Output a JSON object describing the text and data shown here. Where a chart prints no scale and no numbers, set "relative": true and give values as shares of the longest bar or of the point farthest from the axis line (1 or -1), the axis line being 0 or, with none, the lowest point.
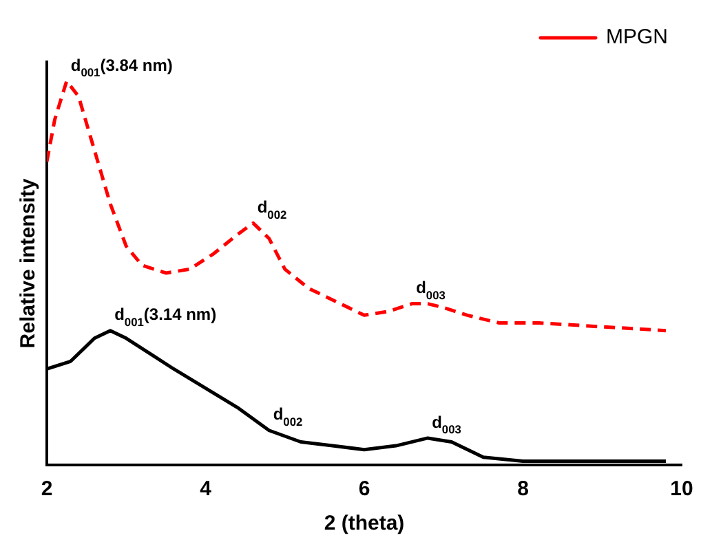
{
  "chart_data": {
    "type": "line",
    "xlabel": "2 (theta)",
    "ylabel": "Relative intensity",
    "relative": true,
    "xlim": [
      2,
      10
    ],
    "xticks": [
      2,
      4,
      6,
      8,
      10
    ],
    "grid": false,
    "legend": "top right",
    "marker": "none",
    "series": [
      {
        "color": "#000000",
        "line_style": "solid",
        "x": [
          2.0,
          2.3,
          2.6,
          2.8,
          3.0,
          3.3,
          3.6,
          4.0,
          4.4,
          4.8,
          5.2,
          5.6,
          6.0,
          6.4,
          6.8,
          7.1,
          7.5,
          8.0,
          9.0,
          9.8
        ],
        "values": [
          0.25,
          0.27,
          0.33,
          0.35,
          0.33,
          0.29,
          0.25,
          0.2,
          0.15,
          0.09,
          0.06,
          0.05,
          0.04,
          0.05,
          0.07,
          0.06,
          0.02,
          0.01,
          0.01,
          0.01
        ]
      },
      {
        "name": "MPGN",
        "color": "#ff0000",
        "line_style": "dashed",
        "x": [
          2.0,
          2.1,
          2.25,
          2.4,
          2.6,
          2.8,
          3.0,
          3.2,
          3.5,
          3.8,
          4.1,
          4.4,
          4.6,
          4.8,
          5.0,
          5.3,
          5.7,
          6.0,
          6.3,
          6.6,
          6.8,
          7.0,
          7.3,
          7.7,
          8.2,
          9.0,
          9.8
        ],
        "values": [
          0.79,
          0.9,
          1.0,
          0.96,
          0.82,
          0.68,
          0.57,
          0.52,
          0.5,
          0.51,
          0.55,
          0.6,
          0.63,
          0.59,
          0.51,
          0.46,
          0.42,
          0.39,
          0.4,
          0.42,
          0.42,
          0.41,
          0.39,
          0.37,
          0.37,
          0.36,
          0.35
        ]
      }
    ],
    "annotations": [
      {
        "text": "d$_{001}$(3.84 nm)",
        "x": 2.25,
        "y": 1.0
      },
      {
        "text": "d$_{002}$",
        "x": 4.6,
        "y": 0.63
      },
      {
        "text": "d$_{003}$",
        "x": 6.6,
        "y": 0.42
      },
      {
        "text": "d$_{001}$(3.14 nm)",
        "x": 2.8,
        "y": 0.35
      },
      {
        "text": "d$_{002}$",
        "x": 4.8,
        "y": 0.09
      },
      {
        "text": "d$_{003}$",
        "x": 6.8,
        "y": 0.07
      }
    ]
  }
}
